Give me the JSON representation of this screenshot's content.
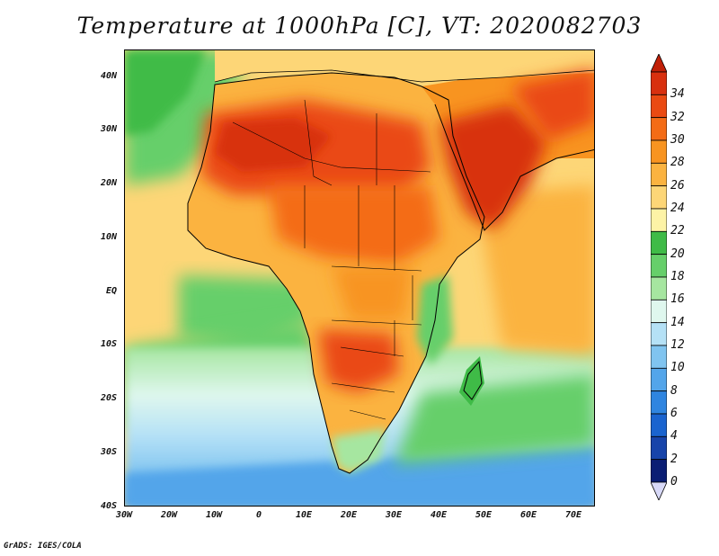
{
  "title": "Temperature at 1000hPa [C], VT: 2020082703",
  "credit": "GrADS: IGES/COLA",
  "map": {
    "lon_range": [
      -30,
      75
    ],
    "lat_range": [
      -40,
      45
    ],
    "lat_ticks": [
      "40N",
      "30N",
      "20N",
      "10N",
      "EQ",
      "10S",
      "20S",
      "30S",
      "40S"
    ],
    "lon_ticks": [
      "30W",
      "20W",
      "10W",
      "0",
      "10E",
      "20E",
      "30E",
      "40E",
      "50E",
      "60E",
      "70E"
    ]
  },
  "colorbar": {
    "labels": [
      "34",
      "32",
      "30",
      "28",
      "26",
      "24",
      "22",
      "20",
      "18",
      "16",
      "14",
      "12",
      "10",
      "8",
      "6",
      "4",
      "2",
      "0"
    ],
    "colors": [
      "#d8300f",
      "#ea4a12",
      "#f46c16",
      "#f89420",
      "#fbb340",
      "#fdd677",
      "#fdf3a6",
      "#3fbb47",
      "#66cf6a",
      "#a6e6a0",
      "#dff7ee",
      "#b5e1f6",
      "#80c4f0",
      "#53a5ea",
      "#2f85e0",
      "#1a64cf",
      "#1744aa",
      "#0b1e74"
    ],
    "top_arrow_color": "#c02008",
    "bottom_arrow_color": "#d8d9f8"
  }
}
